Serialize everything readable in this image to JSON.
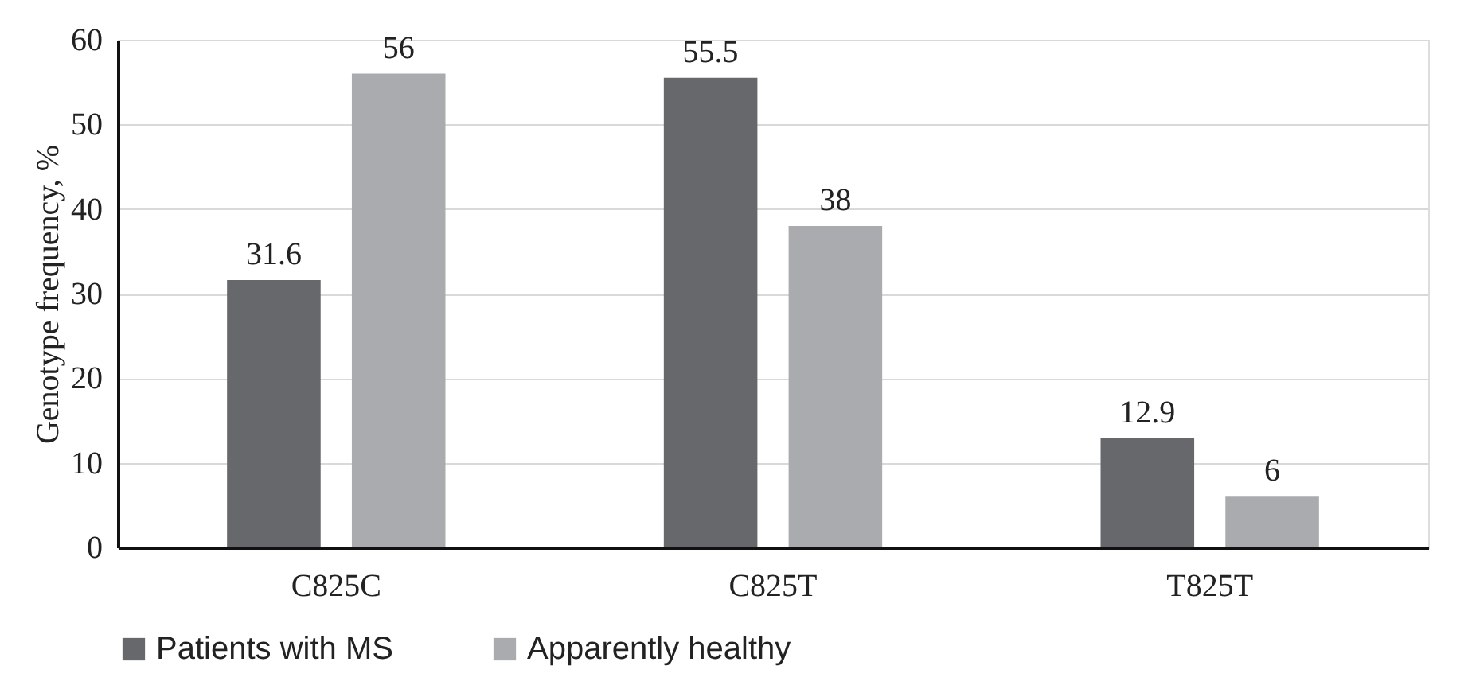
{
  "chart_data": {
    "type": "bar",
    "ylabel": "Genotype frequency, %",
    "categories": [
      "C825C",
      "C825T",
      "T825T"
    ],
    "series": [
      {
        "name": "Patients with MS",
        "color": "#67686c",
        "values": [
          31.6,
          55.5,
          12.9
        ]
      },
      {
        "name": "Apparently healthy",
        "color": "#aaabae",
        "values": [
          56,
          38,
          6
        ]
      }
    ],
    "ylim": [
      0,
      60
    ],
    "yticks": [
      0,
      10,
      20,
      30,
      40,
      50,
      60
    ],
    "grid": "y",
    "legend": "bottom",
    "data_labels": true
  }
}
